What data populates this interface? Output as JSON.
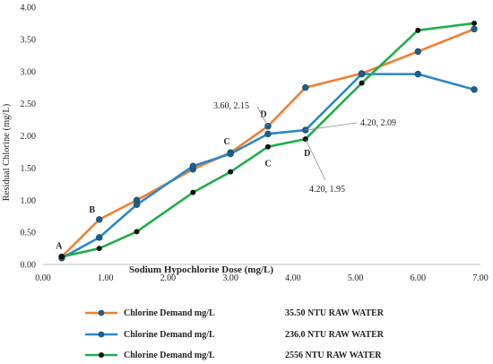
{
  "chart_data": {
    "type": "line",
    "xlabel": "Sodium Hypochlorite Dose (mg/L)",
    "ylabel": "Residual Chlorine (mg/L)",
    "xlim": [
      0,
      7
    ],
    "ylim": [
      0,
      4
    ],
    "x_ticks": [
      "0.00",
      "1.00",
      "2.00",
      "3.00",
      "4.00",
      "5.00",
      "6.00",
      "7.00"
    ],
    "y_ticks": [
      "0.00",
      "0.50",
      "1.00",
      "1.50",
      "2.00",
      "2.50",
      "3.00",
      "3.50",
      "4.00"
    ],
    "grid": false,
    "legend_position": "bottom",
    "series": [
      {
        "name": "Chlorine Demand mg/L",
        "legend_note": "35.50 NTU RAW WATER",
        "color": "#f07f33",
        "x": [
          0.3,
          0.9,
          1.5,
          2.4,
          3.0,
          3.6,
          4.2,
          5.1,
          6.0,
          6.9
        ],
        "y": [
          0.12,
          0.7,
          1.0,
          1.48,
          1.74,
          2.15,
          2.75,
          2.97,
          3.31,
          3.66
        ]
      },
      {
        "name": "Chlorine Demand mg/L",
        "legend_note": "236.0 NTU RAW WATER",
        "color": "#2b88c8",
        "x": [
          0.3,
          0.9,
          1.5,
          2.4,
          3.0,
          3.6,
          4.2,
          5.1,
          6.0,
          6.9
        ],
        "y": [
          0.1,
          0.42,
          0.93,
          1.53,
          1.72,
          2.03,
          2.09,
          2.96,
          2.96,
          2.72
        ]
      },
      {
        "name": "Chlorine Demand mg/L",
        "legend_note": "2556 NTU RAW WATER",
        "color": "#1fae4a",
        "x": [
          0.3,
          0.9,
          1.5,
          2.4,
          3.0,
          3.6,
          4.2,
          5.1,
          6.0,
          6.9
        ],
        "y": [
          0.12,
          0.25,
          0.51,
          1.12,
          1.44,
          1.83,
          1.95,
          2.82,
          3.64,
          3.75
        ]
      }
    ],
    "point_labels": [
      {
        "text": "A",
        "x": 0.3,
        "y": 0.12
      },
      {
        "text": "B",
        "x": 0.9,
        "y": 0.7
      },
      {
        "text": "C",
        "x": 3.0,
        "y": 1.74
      },
      {
        "text": "D",
        "x": 3.6,
        "y": 2.15
      },
      {
        "text": "C",
        "x": 3.6,
        "y": 1.83
      },
      {
        "text": "D",
        "x": 4.2,
        "y": 1.95
      }
    ],
    "callouts": [
      {
        "text": "3.60, 2.15",
        "x": 3.6,
        "y": 2.15
      },
      {
        "text": "4.20, 2.09",
        "x": 4.2,
        "y": 2.09
      },
      {
        "text": "4.20, 1.95",
        "x": 4.2,
        "y": 1.95
      }
    ]
  }
}
